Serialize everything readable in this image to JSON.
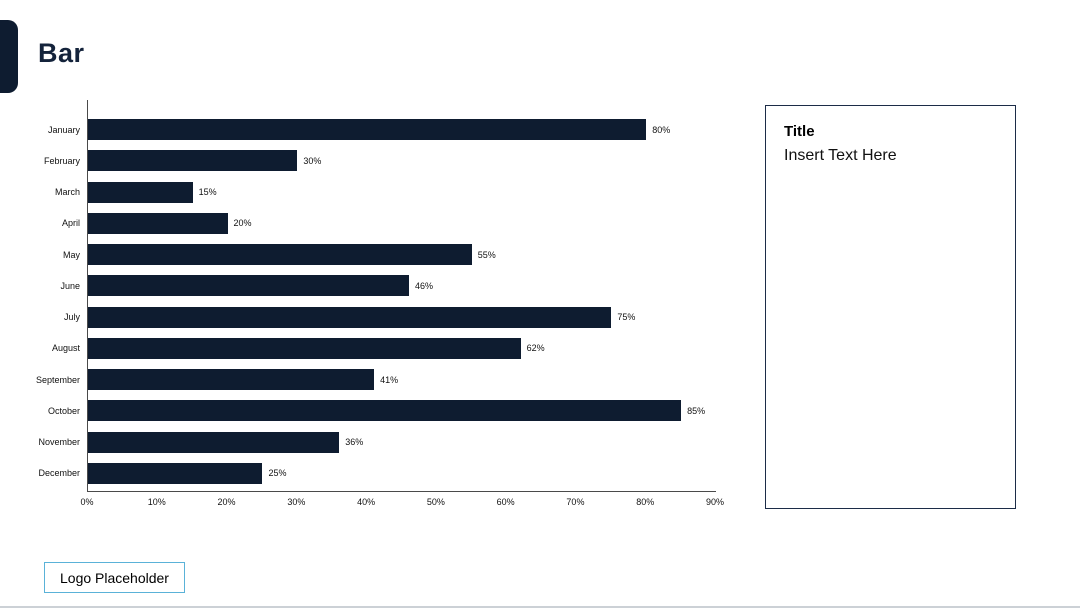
{
  "header": {
    "title": "Bar"
  },
  "chart_data": {
    "type": "bar",
    "orientation": "horizontal",
    "categories": [
      "January",
      "February",
      "March",
      "April",
      "May",
      "June",
      "July",
      "August",
      "September",
      "October",
      "November",
      "December"
    ],
    "values": [
      80,
      30,
      15,
      20,
      55,
      46,
      75,
      62,
      41,
      85,
      36,
      25
    ],
    "value_labels": [
      "80%",
      "30%",
      "15%",
      "20%",
      "55%",
      "46%",
      "75%",
      "62%",
      "41%",
      "85%",
      "36%",
      "25%"
    ],
    "x_ticks": [
      "0%",
      "10%",
      "20%",
      "30%",
      "40%",
      "50%",
      "60%",
      "70%",
      "80%",
      "90%"
    ],
    "xlim": [
      0,
      90
    ],
    "xlabel": "",
    "ylabel": "",
    "title": "",
    "grid": false,
    "legend": false,
    "bar_color": "#0e1c30"
  },
  "side_panel": {
    "title": "Title",
    "body": "Insert Text Here"
  },
  "footer": {
    "logo_label": "Logo Placeholder"
  },
  "colors": {
    "accent_navy": "#0e1c30",
    "panel_border": "#1c2c47",
    "logo_border": "#5ab2d8",
    "axis": "#4a4a4a"
  }
}
